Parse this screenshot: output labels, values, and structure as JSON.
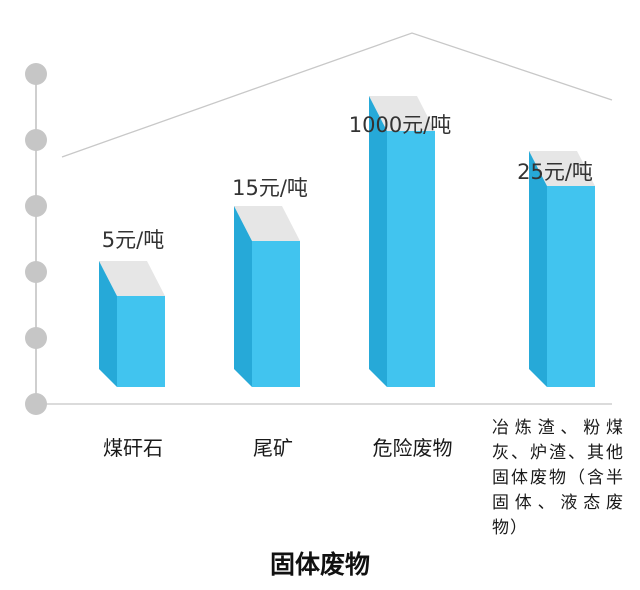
{
  "chart_data": {
    "type": "bar",
    "title": "固体废物",
    "categories": [
      "煤矸石",
      "尾矿",
      "危险废物",
      "冶炼渣、粉煤灰、炉渣、其他固体废物（含半固体、液态废物）"
    ],
    "values": [
      5,
      15,
      1000,
      25
    ],
    "value_labels": [
      "5元/吨",
      "15元/吨",
      "1000元/吨",
      "25元/吨"
    ],
    "unit": "元/吨",
    "scale": "ordinal-stepped",
    "axis_markers": 6,
    "colors": {
      "front": "#41c4ef",
      "side": "#26a9d8",
      "top": "#e6e6e6",
      "marker": "#c6c6c6",
      "roof": "#c8c8c8"
    }
  }
}
